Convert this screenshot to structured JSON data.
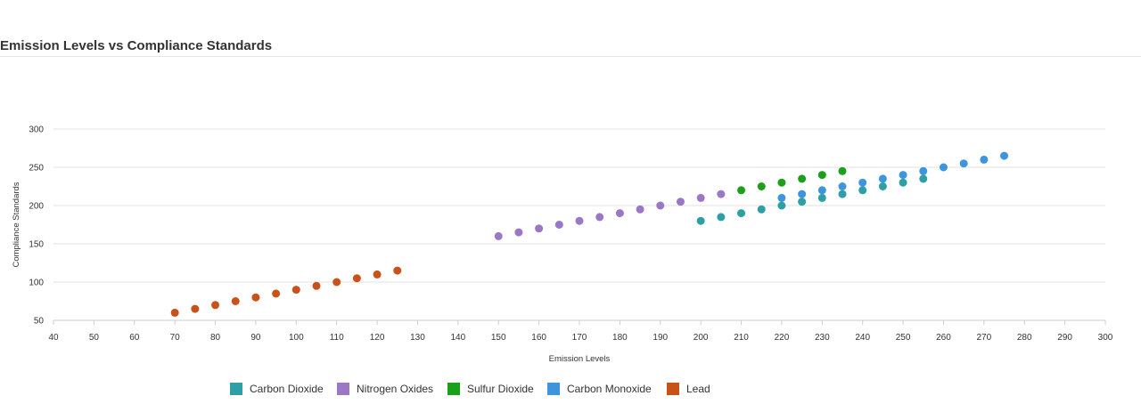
{
  "header": {
    "title": "Emission Levels vs Compliance Standards"
  },
  "chart_data": {
    "type": "scatter",
    "xlabel": "Emission Levels",
    "ylabel": "Compliance Standards",
    "xlim": [
      40,
      300
    ],
    "ylim": [
      50,
      300
    ],
    "x_ticks": [
      40,
      50,
      60,
      70,
      80,
      90,
      100,
      110,
      120,
      130,
      140,
      150,
      160,
      170,
      180,
      190,
      200,
      210,
      220,
      230,
      240,
      250,
      260,
      270,
      280,
      290,
      300
    ],
    "y_ticks": [
      50,
      100,
      150,
      200,
      250,
      300
    ],
    "grid": "horizontal",
    "legend_position": "bottom",
    "series": [
      {
        "name": "Carbon Dioxide",
        "color": "#2e9fa6",
        "points": [
          [
            200,
            180
          ],
          [
            205,
            185
          ],
          [
            210,
            190
          ],
          [
            215,
            195
          ],
          [
            220,
            200
          ],
          [
            225,
            205
          ],
          [
            230,
            210
          ],
          [
            235,
            215
          ],
          [
            240,
            220
          ],
          [
            245,
            225
          ],
          [
            250,
            230
          ],
          [
            255,
            235
          ]
        ]
      },
      {
        "name": "Nitrogen Oxides",
        "color": "#9b78c6",
        "points": [
          [
            150,
            160
          ],
          [
            155,
            165
          ],
          [
            160,
            170
          ],
          [
            165,
            175
          ],
          [
            170,
            180
          ],
          [
            175,
            185
          ],
          [
            180,
            190
          ],
          [
            185,
            195
          ],
          [
            190,
            200
          ],
          [
            195,
            205
          ],
          [
            200,
            210
          ],
          [
            205,
            215
          ]
        ]
      },
      {
        "name": "Sulfur Dioxide",
        "color": "#1aa01a",
        "points": [
          [
            210,
            220
          ],
          [
            215,
            225
          ],
          [
            220,
            230
          ],
          [
            225,
            235
          ],
          [
            230,
            240
          ],
          [
            235,
            245
          ]
        ]
      },
      {
        "name": "Carbon Monoxide",
        "color": "#3d96dd",
        "points": [
          [
            220,
            210
          ],
          [
            225,
            215
          ],
          [
            230,
            220
          ],
          [
            235,
            225
          ],
          [
            240,
            230
          ],
          [
            245,
            235
          ],
          [
            250,
            240
          ],
          [
            255,
            245
          ],
          [
            260,
            250
          ],
          [
            265,
            255
          ],
          [
            270,
            260
          ],
          [
            275,
            265
          ]
        ]
      },
      {
        "name": "Lead",
        "color": "#c9521a",
        "points": [
          [
            70,
            60
          ],
          [
            75,
            65
          ],
          [
            80,
            70
          ],
          [
            85,
            75
          ],
          [
            90,
            80
          ],
          [
            95,
            85
          ],
          [
            100,
            90
          ],
          [
            105,
            95
          ],
          [
            110,
            100
          ],
          [
            115,
            105
          ],
          [
            120,
            110
          ],
          [
            125,
            115
          ]
        ]
      }
    ]
  }
}
